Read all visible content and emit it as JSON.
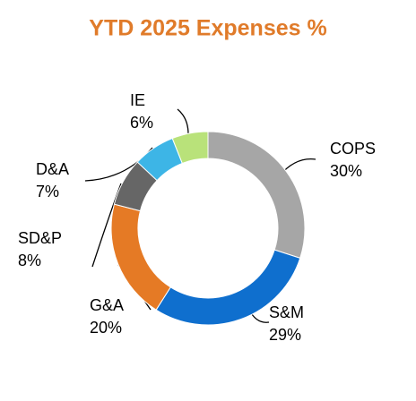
{
  "chart_data": {
    "type": "donut",
    "title": "YTD 2025 Expenses %",
    "categories": [
      "COPS",
      "S&M",
      "G&A",
      "SD&P",
      "D&A",
      "IE"
    ],
    "values": [
      30,
      29,
      20,
      8,
      7,
      6
    ],
    "value_labels": [
      "30%",
      "29%",
      "20%",
      "8%",
      "7%",
      "6%"
    ],
    "colors": [
      "#a6a6a6",
      "#0f6fce",
      "#e57a25",
      "#666666",
      "#3db5e6",
      "#b9e27a"
    ]
  }
}
